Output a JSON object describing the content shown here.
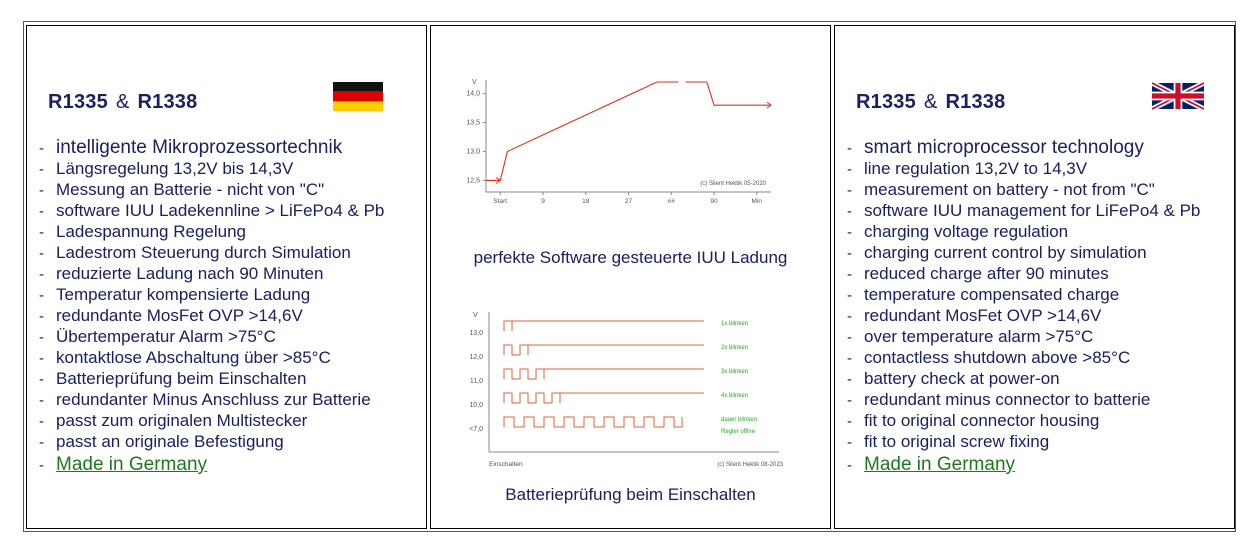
{
  "left_panel": {
    "title_a": "R1335",
    "amp": "&",
    "title_b": "R1338",
    "items": [
      "intelligente Mikroprozessortechnik",
      "Längsregelung 13,2V bis 14,3V",
      "Messung an Batterie - nicht von \"C\"",
      "software IUU Ladekennline  > LiFePo4 & Pb",
      "Ladespannung Regelung",
      "Ladestrom Steuerung durch Simulation",
      "reduzierte Ladung nach 90 Minuten",
      "Temperatur kompensierte Ladung",
      "redundante MosFet OVP  >14,6V",
      "Übertemperatur Alarm   >75°C",
      "kontaktlose Abschaltung über  >85°C",
      "Batterieprüfung beim Einschalten",
      "redundanter Minus Anschluss zur Batterie",
      "passt zum originalen Multistecker",
      "passt an originale Befestigung"
    ],
    "made_in": "Made in Germany"
  },
  "middle_panel": {
    "caption_top": "perfekte Software gesteuerte IUU Ladung",
    "caption_bottom": "Batterieprüfung beim Einschalten"
  },
  "right_panel": {
    "title_a": "R1335",
    "amp": "&",
    "title_b": "R1338",
    "items": [
      "smart microprocessor technology",
      "line regulation 13,2V  to 14,3V",
      "measurement on battery - not from \"C\"",
      "software IUU management for LiFePo4 & Pb",
      "charging voltage regulation",
      "charging current control by simulation",
      "reduced charge after 90 minutes",
      "temperature compensated charge",
      "redundant MosFet OVP  >14,6V",
      "over temperature alarm  >75°C",
      "contactless shutdown above >85°C",
      "battery check at power-on",
      "redundant minus connector to batterie",
      "fit to original connector housing",
      "fit to original screw fixing"
    ],
    "made_in": "Made in Germany"
  },
  "chart_data": [
    {
      "type": "line",
      "ylabel": "V",
      "yticks": [
        "12,5",
        "13,0",
        "13,5",
        "14,0"
      ],
      "ylim": [
        12.3,
        14.2
      ],
      "xticks": [
        "Start",
        "9",
        "18",
        "27",
        "##",
        "90",
        "Min"
      ],
      "credit": "(c) Silent Hektik 05-2020",
      "series": [
        {
          "values": [
            [
              0,
              12.5
            ],
            [
              2,
              12.5
            ],
            [
              3,
              13.0
            ],
            [
              24,
              14.2
            ],
            [
              27,
              14.2
            ],
            [
              28,
              14.2
            ],
            [
              31,
              14.2
            ],
            [
              32,
              13.8
            ],
            [
              40,
              13.8
            ]
          ]
        }
      ],
      "line_color": "#e03020",
      "axis_color": "#888888"
    },
    {
      "type": "line",
      "ylabel": "V",
      "yticks": [
        "13,0",
        "12,0",
        "11,0",
        "10,0",
        "<7,0"
      ],
      "xticks": [
        "Einschalten"
      ],
      "credit": "(c) Silent Hektik 08-2023",
      "legend": [
        "1x blinken",
        "2x blinken",
        "3x blinken",
        "4x blinken",
        "dauer blinken",
        "Regler offine"
      ],
      "pulses": [
        1,
        2,
        3,
        4,
        9
      ],
      "line_color": "#e0603a",
      "legend_color": "#22aa22"
    }
  ]
}
